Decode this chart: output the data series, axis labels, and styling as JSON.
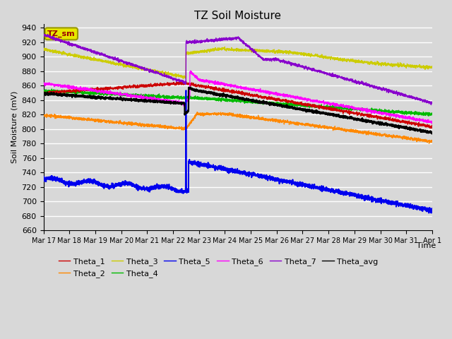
{
  "title": "TZ Soil Moisture",
  "ylabel": "Soil Moisture (mV)",
  "xlabel": "Time",
  "ylim": [
    660,
    945
  ],
  "yticks": [
    660,
    680,
    700,
    720,
    740,
    760,
    780,
    800,
    820,
    840,
    860,
    880,
    900,
    920,
    940
  ],
  "xtick_labels": [
    "Mar 17",
    "Mar 18",
    "Mar 19",
    "Mar 20",
    "Mar 21",
    "Mar 22",
    "Mar 23",
    "Mar 24",
    "Mar 25",
    "Mar 26",
    "Mar 27",
    "Mar 28",
    "Mar 29",
    "Mar 30",
    "Mar 31",
    "Apr 1"
  ],
  "colors": {
    "Theta_1": "#cc0000",
    "Theta_2": "#ff8800",
    "Theta_3": "#cccc00",
    "Theta_4": "#00bb00",
    "Theta_5": "#0000ee",
    "Theta_6": "#ff00ff",
    "Theta_7": "#8800cc",
    "Theta_avg": "#000000"
  },
  "background_color": "#d8d8d8",
  "plot_bg_color": "#d8d8d8",
  "grid_color": "#ffffff",
  "legend_box_text": "TZ_sm",
  "title_fontsize": 11,
  "label_fontsize": 8
}
